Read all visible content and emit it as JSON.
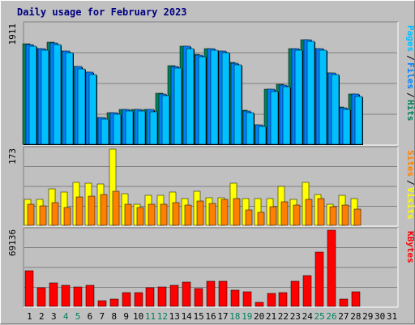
{
  "chart_data": [
    {
      "type": "bar",
      "title": "Daily usage for February 2023",
      "days": [
        "1",
        "2",
        "3",
        "4",
        "5",
        "6",
        "7",
        "8",
        "9",
        "10",
        "11",
        "12",
        "13",
        "14",
        "15",
        "16",
        "17",
        "18",
        "19",
        "20",
        "21",
        "22",
        "23",
        "24",
        "25",
        "26",
        "27",
        "28",
        "29",
        "30",
        "31"
      ],
      "weekend_days": [
        "4",
        "5",
        "11",
        "12",
        "18",
        "19",
        "25",
        "26"
      ],
      "ymax_label": "1911",
      "ymax": 1911,
      "legend": [
        {
          "name": "Pages",
          "color": "#00c0ff"
        },
        {
          "name": "Files",
          "color": "#0080ff"
        },
        {
          "name": "Hits",
          "color": "#00805c"
        }
      ],
      "series": [
        {
          "name": "Hits",
          "color": "#00805c",
          "values": [
            1595,
            1530,
            1625,
            1490,
            1240,
            1150,
            430,
            510,
            560,
            560,
            555,
            810,
            1250,
            1565,
            1430,
            1530,
            1490,
            1300,
            540,
            310,
            880,
            950,
            1530,
            1670,
            1530,
            1140,
            590,
            800,
            null,
            null,
            null
          ]
        },
        {
          "name": "Files",
          "color": "#0080ff",
          "values": [
            1590,
            1525,
            1620,
            1485,
            1235,
            1145,
            425,
            505,
            555,
            555,
            550,
            805,
            1245,
            1560,
            1425,
            1525,
            1485,
            1295,
            535,
            305,
            875,
            945,
            1525,
            1665,
            1525,
            1135,
            585,
            795,
            null,
            null,
            null
          ]
        },
        {
          "name": "Pages",
          "color": "#00c0ff",
          "values": [
            1560,
            1495,
            1590,
            1455,
            1205,
            1115,
            400,
            475,
            525,
            525,
            520,
            775,
            1215,
            1530,
            1395,
            1495,
            1455,
            1265,
            505,
            280,
            845,
            915,
            1495,
            1635,
            1495,
            1105,
            555,
            765,
            null,
            null,
            null
          ]
        }
      ]
    },
    {
      "type": "bar",
      "ymax_label": "173",
      "ymax": 173,
      "legend": [
        {
          "name": "Sites",
          "color": "#ff8000"
        },
        {
          "name": "Visits",
          "color": "#ffff00"
        }
      ],
      "series": [
        {
          "name": "Visits",
          "color": "#ffff00",
          "values": [
            58,
            58,
            82,
            75,
            98,
            96,
            93,
            173,
            72,
            48,
            68,
            68,
            75,
            60,
            78,
            63,
            62,
            96,
            60,
            60,
            60,
            88,
            58,
            98,
            70,
            48,
            68,
            60,
            null,
            null,
            null
          ]
        },
        {
          "name": "Sites",
          "color": "#ff8000",
          "values": [
            47,
            45,
            51,
            40,
            65,
            66,
            70,
            77,
            47,
            40,
            47,
            47,
            51,
            46,
            55,
            50,
            58,
            60,
            35,
            30,
            43,
            53,
            46,
            58,
            60,
            43,
            46,
            36,
            null,
            null,
            null
          ]
        }
      ]
    },
    {
      "type": "bar",
      "ymax_label": "69136",
      "ymax": 69136,
      "legend": [
        {
          "name": "KBytes",
          "color": "#ff0000"
        }
      ],
      "series": [
        {
          "name": "KBytes",
          "color": "#ff0000",
          "values": [
            32000,
            17000,
            21000,
            19000,
            18000,
            19000,
            5000,
            6500,
            12500,
            12500,
            17000,
            18000,
            19000,
            22000,
            16500,
            22500,
            23000,
            15000,
            13000,
            3500,
            11500,
            12500,
            23000,
            28000,
            49000,
            69136,
            6300,
            13000,
            null,
            null,
            null
          ]
        }
      ]
    }
  ]
}
